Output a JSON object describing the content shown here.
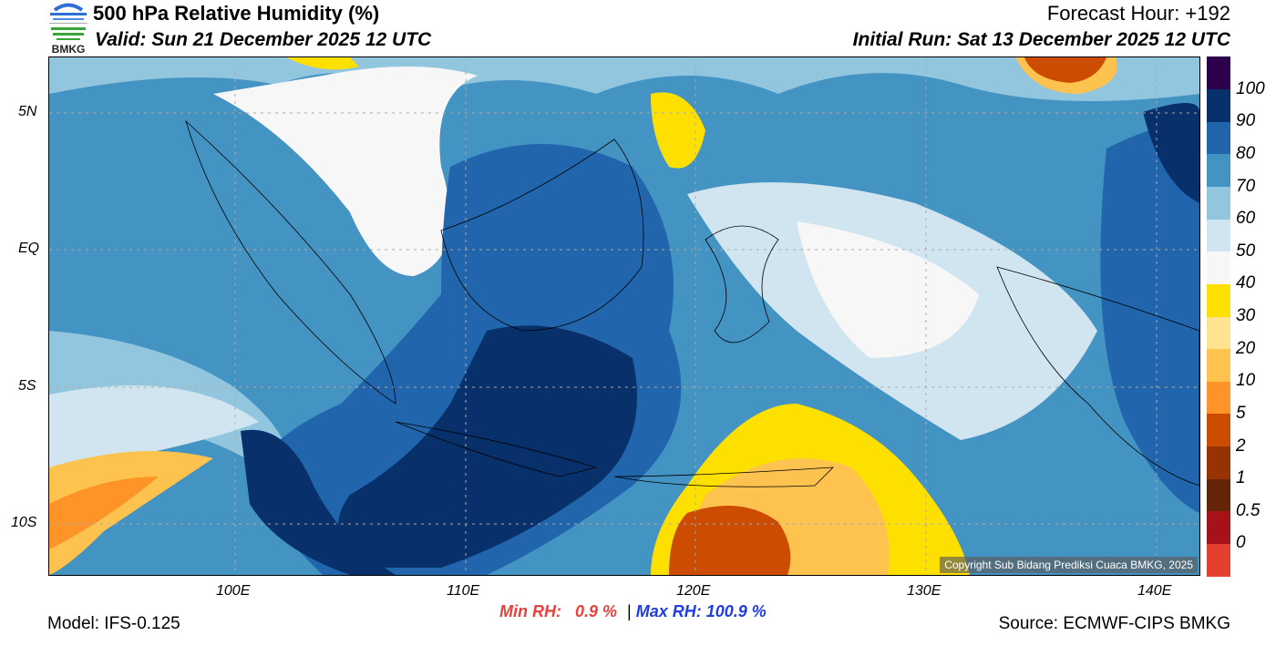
{
  "header": {
    "logo_text": "BMKG",
    "title": "500 hPa Relative Humidity (%)",
    "valid": "Valid: Sun 21 December 2025 12 UTC",
    "forecast_hour": "Forecast Hour: +192",
    "initial_run": "Initial Run: Sat 13 December 2025 12 UTC"
  },
  "map": {
    "lat_labels": [
      "5N",
      "EQ",
      "5S",
      "10S"
    ],
    "lon_labels": [
      "100E",
      "110E",
      "120E",
      "130E",
      "140E"
    ],
    "copyright": "Copyright Sub Bidang Prediksi Cuaca BMKG, 2025"
  },
  "colorbar": {
    "colors": [
      "#e5402f",
      "#a51319",
      "#652509",
      "#973303",
      "#cc4c02",
      "#fe9427",
      "#fec24f",
      "#fee391",
      "#fee000",
      "#f7f7f7",
      "#d1e5f0",
      "#92c5de",
      "#4393c3",
      "#2166ac",
      "#08306b",
      "#2d004b"
    ],
    "labels": [
      "0",
      "0.5",
      "1",
      "2",
      "5",
      "10",
      "20",
      "30",
      "40",
      "50",
      "60",
      "70",
      "80",
      "90",
      "100"
    ]
  },
  "footer": {
    "model": "Model: IFS-0.125",
    "min_label": "Min RH:",
    "min_value": "0.9 %",
    "separator": "|",
    "max_label": "Max RH: 100.9 %",
    "source": "Source: ECMWF-CIPS BMKG",
    "min_color": "#e8413d",
    "max_color": "#1f3de0"
  }
}
